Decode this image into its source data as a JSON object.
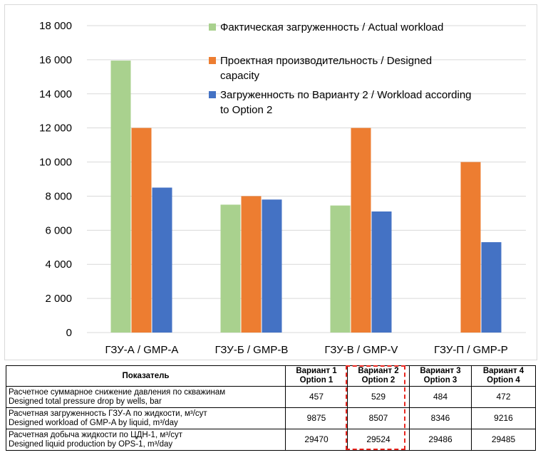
{
  "chart_data": {
    "type": "bar",
    "categories": [
      "ГЗУ-А / GMP-A",
      "ГЗУ-Б / GMP-B",
      "ГЗУ-В / GMP-V",
      "ГЗУ-П / GMP-P"
    ],
    "series": [
      {
        "name": "Фактическая загруженность / Actual workload",
        "color": "#a9d18e",
        "values": [
          15950,
          7500,
          7450,
          null
        ]
      },
      {
        "name": "Проектная производительность / Designed capacity",
        "color": "#ed7d31",
        "values": [
          12000,
          8000,
          12000,
          10000
        ]
      },
      {
        "name": "Загруженность по Варианту 2 / Workload according to Option 2",
        "color": "#4472c4",
        "values": [
          8500,
          7800,
          7100,
          5300
        ]
      }
    ],
    "yticks": [
      "0",
      "2 000",
      "4 000",
      "6 000",
      "8 000",
      "10 000",
      "12 000",
      "14 000",
      "16 000",
      "18 000"
    ],
    "ylim": [
      0,
      18000
    ],
    "grid": true,
    "legend_placement": "top-right"
  },
  "table": {
    "header": {
      "indicator": "Показатель",
      "options": [
        [
          "Вариант 1",
          "Option 1"
        ],
        [
          "Вариант 2",
          "Option 2"
        ],
        [
          "Вариант 3",
          "Option 3"
        ],
        [
          "Вариант 4",
          "Option 4"
        ]
      ]
    },
    "rows": [
      {
        "label_ru": "Расчетное суммарное снижение давления по скважинам",
        "label_en": "Designed total pressure drop by wells, bar",
        "values": [
          "457",
          "529",
          "484",
          "472"
        ]
      },
      {
        "label_ru": "Расчетная загруженность ГЗУ-А по жидкости, м³/сут",
        "label_en": "Designed workload of GMP-A by liquid, m³/day",
        "values": [
          "9875",
          "8507",
          "8346",
          "9216"
        ]
      },
      {
        "label_ru": "Расчетная добыча жидкости по ЦДН-1, м³/сут",
        "label_en": "Designed liquid production by OPS-1, m³/day",
        "values": [
          "29470",
          "29524",
          "29486",
          "29485"
        ]
      }
    ],
    "highlight_color": "#e8261f"
  }
}
